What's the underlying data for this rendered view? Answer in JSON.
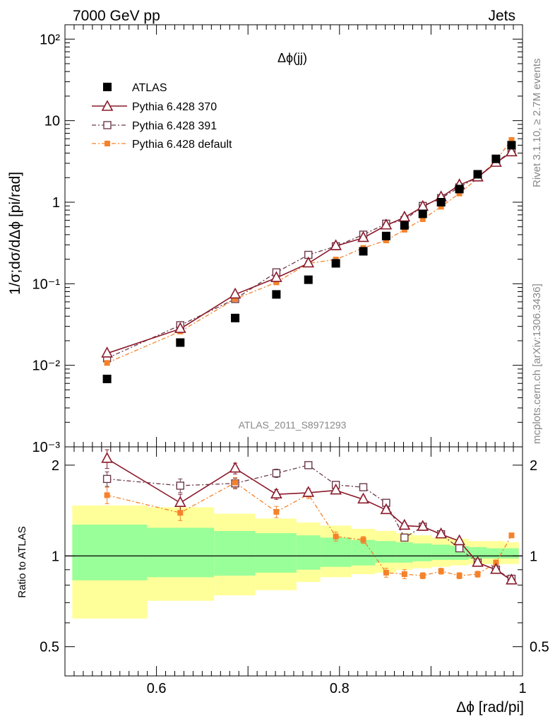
{
  "header": {
    "left": "7000 GeV pp",
    "right": "Jets"
  },
  "side": {
    "rivet": "Rivet 3.1.10, ≥ 2.7M events",
    "source": "mcplots.cern.ch [arXiv:1306.3436]"
  },
  "analysis_id": "ATLAS_2011_S8971293",
  "colors": {
    "atlas": "#000000",
    "p370": "#8b1a2b",
    "p391": "#6b3a4b",
    "pdef": "#f5822a",
    "band_inner": "#99ff99",
    "band_outer": "#ffff99"
  },
  "chart_data": [
    {
      "type": "scatter",
      "title": "Δϕ(jj)",
      "ylabel": "1/σ;dσ/dΔϕ [pi/rad]",
      "xlim": [
        0.5,
        1.0
      ],
      "ylim": [
        0.001,
        150
      ],
      "yscale": "log",
      "y_ticks": [
        {
          "value": 0.001,
          "label": "10⁻³"
        },
        {
          "value": 0.01,
          "label": "10⁻²"
        },
        {
          "value": 0.1,
          "label": "10⁻¹"
        },
        {
          "value": 1,
          "label": "1"
        },
        {
          "value": 10,
          "label": "10"
        },
        {
          "value": 100,
          "label": "10²"
        }
      ],
      "legend": [
        {
          "key": "atlas",
          "label": "ATLAS"
        },
        {
          "key": "p370",
          "label": "Pythia 6.428 370"
        },
        {
          "key": "p391",
          "label": "Pythia 6.428 391"
        },
        {
          "key": "pdef",
          "label": "Pythia 6.428 default"
        }
      ],
      "x": [
        0.546,
        0.626,
        0.686,
        0.731,
        0.766,
        0.796,
        0.826,
        0.851,
        0.871,
        0.891,
        0.911,
        0.931,
        0.951,
        0.971,
        0.988
      ],
      "series": [
        {
          "key": "atlas",
          "name": "ATLAS",
          "values": [
            0.0068,
            0.019,
            0.038,
            0.074,
            0.112,
            0.178,
            0.25,
            0.385,
            0.52,
            0.72,
            1.0,
            1.45,
            2.2,
            3.4,
            5.0
          ]
        },
        {
          "key": "p370",
          "name": "Pythia 6.428 370",
          "values": [
            0.014,
            0.028,
            0.074,
            0.118,
            0.178,
            0.29,
            0.365,
            0.52,
            0.65,
            0.88,
            1.15,
            1.62,
            2.02,
            3.05,
            4.1
          ]
        },
        {
          "key": "p391",
          "name": "Pythia 6.428 391",
          "values": [
            0.0122,
            0.031,
            0.065,
            0.138,
            0.226,
            0.288,
            0.4,
            0.545,
            0.6,
            0.9,
            1.12,
            1.52,
            2.05,
            3.1,
            4.2
          ]
        },
        {
          "key": "pdef",
          "name": "Pythia 6.428 default",
          "values": [
            0.0107,
            0.026,
            0.065,
            0.104,
            0.178,
            0.198,
            0.275,
            0.34,
            0.46,
            0.62,
            0.88,
            1.28,
            1.96,
            3.25,
            5.8
          ]
        }
      ]
    },
    {
      "type": "scatter",
      "ylabel": "Ratio to ATLAS",
      "xlabel": "Δϕ [rad/pi]",
      "xlim": [
        0.5,
        1.0
      ],
      "ylim": [
        0.4,
        2.3
      ],
      "yscale": "log",
      "y_ticks": [
        {
          "value": 0.5,
          "label": "0.5"
        },
        {
          "value": 1,
          "label": "1"
        },
        {
          "value": 2,
          "label": "2"
        }
      ],
      "x_ticks": [
        {
          "value": 0.6,
          "label": "0.6"
        },
        {
          "value": 0.8,
          "label": "0.8"
        },
        {
          "value": 1.0,
          "label": "1"
        }
      ],
      "band_bins": [
        0.508,
        0.59,
        0.663,
        0.708,
        0.753,
        0.779,
        0.813,
        0.839,
        0.862,
        0.88,
        0.901,
        0.921,
        0.941,
        0.961,
        0.981,
        0.996
      ],
      "band_inner_low": [
        0.83,
        0.85,
        0.86,
        0.88,
        0.9,
        0.92,
        0.93,
        0.95,
        0.95,
        0.96,
        0.97,
        0.97,
        0.98,
        0.98,
        0.98
      ],
      "band_inner_high": [
        1.27,
        1.24,
        1.21,
        1.19,
        1.17,
        1.15,
        1.13,
        1.12,
        1.11,
        1.1,
        1.09,
        1.08,
        1.07,
        1.06,
        1.06
      ],
      "band_outer_low": [
        0.62,
        0.71,
        0.74,
        0.77,
        0.82,
        0.85,
        0.87,
        0.88,
        0.9,
        0.91,
        0.92,
        0.93,
        0.94,
        0.94,
        0.94
      ],
      "band_outer_high": [
        1.47,
        1.45,
        1.38,
        1.33,
        1.29,
        1.26,
        1.23,
        1.21,
        1.19,
        1.17,
        1.15,
        1.14,
        1.12,
        1.12,
        1.11
      ],
      "x": [
        0.546,
        0.626,
        0.686,
        0.731,
        0.766,
        0.796,
        0.826,
        0.851,
        0.871,
        0.891,
        0.911,
        0.931,
        0.951,
        0.971,
        0.988
      ],
      "series": [
        {
          "key": "p370",
          "name": "Pythia 6.428 370",
          "values": [
            2.1,
            1.5,
            1.95,
            1.6,
            1.62,
            1.65,
            1.54,
            1.42,
            1.26,
            1.25,
            1.18,
            1.12,
            0.95,
            0.9,
            0.83
          ],
          "err": [
            0.15,
            0.1,
            0.08,
            0.06,
            0.05,
            0.04,
            0.04,
            0.03,
            0.03,
            0.02,
            0.02,
            0.02,
            0.02,
            0.02,
            0.02
          ]
        },
        {
          "key": "p391",
          "name": "Pythia 6.428 391",
          "values": [
            1.8,
            1.71,
            1.74,
            1.88,
            2.0,
            1.72,
            1.69,
            1.5,
            1.15,
            1.25,
            1.18,
            1.06,
            0.95,
            0.9,
            0.84
          ],
          "err": [
            0.1,
            0.09,
            0.07,
            0.06,
            0.05,
            0.04,
            0.04,
            0.03,
            0.03,
            0.02,
            0.02,
            0.02,
            0.02,
            0.02,
            0.02
          ]
        },
        {
          "key": "pdef",
          "name": "Pythia 6.428 default",
          "values": [
            1.59,
            1.39,
            1.75,
            1.4,
            1.6,
            1.16,
            1.13,
            0.88,
            0.87,
            0.86,
            0.89,
            0.86,
            0.87,
            0.95,
            1.17
          ],
          "err": [
            0.1,
            0.08,
            0.07,
            0.06,
            0.05,
            0.04,
            0.03,
            0.03,
            0.03,
            0.02,
            0.02,
            0.02,
            0.02,
            0.02,
            0.02
          ]
        }
      ]
    }
  ]
}
